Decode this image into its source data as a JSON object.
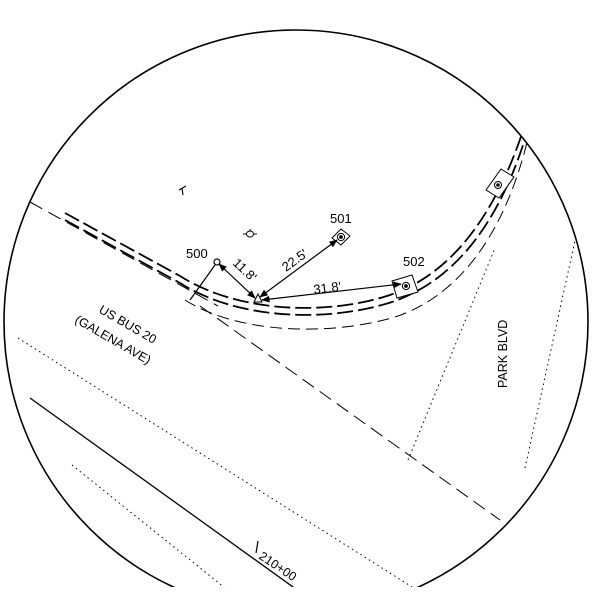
{
  "points": [
    {
      "id": "point-500",
      "label": "500"
    },
    {
      "id": "point-501",
      "label": "501"
    },
    {
      "id": "point-502",
      "label": "502"
    }
  ],
  "dimensions": [
    {
      "id": "dim-500",
      "label": "11.8'"
    },
    {
      "id": "dim-501",
      "label": "22.5'"
    },
    {
      "id": "dim-502",
      "label": "31.8'"
    }
  ],
  "roads": {
    "us_bus_20": "US BUS 20",
    "galena_ave": "(GALENA AVE)",
    "park_blvd": "PARK BLVD"
  },
  "station": {
    "label": "210+00"
  },
  "colors": {
    "ink": "#000000",
    "background": "#ffffff"
  }
}
